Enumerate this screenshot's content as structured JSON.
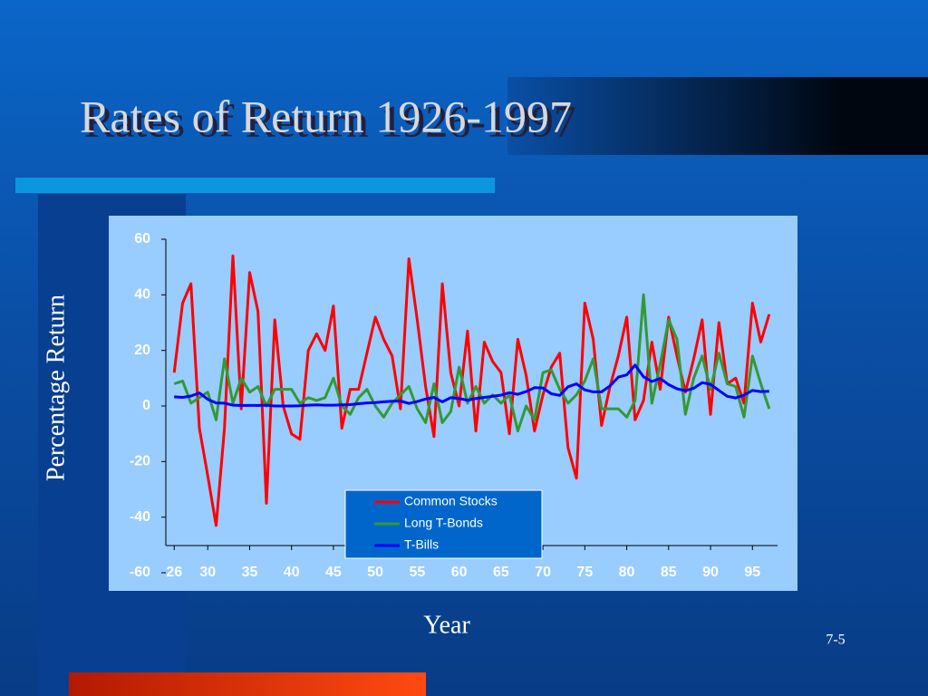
{
  "page_number": "7-5",
  "chart_data": {
    "type": "line",
    "title": "Rates of Return 1926-1997",
    "y_label": "Percentage Return",
    "x_label": "Year",
    "x": [
      26,
      27,
      28,
      29,
      30,
      31,
      32,
      33,
      34,
      35,
      36,
      37,
      38,
      39,
      40,
      41,
      42,
      43,
      44,
      45,
      46,
      47,
      48,
      49,
      50,
      51,
      52,
      53,
      54,
      55,
      56,
      57,
      58,
      59,
      60,
      61,
      62,
      63,
      64,
      65,
      66,
      67,
      68,
      69,
      70,
      71,
      72,
      73,
      74,
      75,
      76,
      77,
      78,
      79,
      80,
      81,
      82,
      83,
      84,
      85,
      86,
      87,
      88,
      89,
      90,
      91,
      92,
      93,
      94,
      95,
      96,
      97
    ],
    "xlim": [
      25,
      98
    ],
    "xticks": [
      26,
      30,
      35,
      40,
      45,
      50,
      55,
      60,
      65,
      70,
      75,
      80,
      85,
      90,
      95
    ],
    "ylim": [
      -60,
      60
    ],
    "yticks": [
      -60,
      -40,
      -20,
      0,
      20,
      40,
      60
    ],
    "series": [
      {
        "name": "Common Stocks",
        "color": "#ff0000",
        "values": [
          12,
          37,
          44,
          -8,
          -25,
          -43,
          -8,
          54,
          -1,
          48,
          34,
          -35,
          31,
          0,
          -10,
          -12,
          20,
          26,
          20,
          36,
          -8,
          6,
          6,
          19,
          32,
          24,
          18,
          -1,
          53,
          31,
          7,
          -11,
          44,
          12,
          0,
          27,
          -9,
          23,
          16,
          12,
          -10,
          24,
          11,
          -9,
          4,
          14,
          19,
          -15,
          -26,
          37,
          24,
          -7,
          7,
          18,
          32,
          -5,
          2,
          23,
          6,
          32,
          18,
          5,
          17,
          31,
          -3,
          30,
          8,
          10,
          1,
          37,
          23,
          33
        ]
      },
      {
        "name": "Long T-Bonds",
        "color": "#339933",
        "values": [
          8,
          9,
          1,
          3,
          5,
          -5,
          17,
          1,
          10,
          5,
          7,
          0,
          6,
          6,
          6,
          1,
          3,
          2,
          3,
          10,
          0,
          -3,
          3,
          6,
          0,
          -4,
          1,
          4,
          7,
          -1,
          -6,
          8,
          -6,
          -2,
          14,
          1,
          7,
          1,
          4,
          1,
          4,
          -9,
          0,
          -5,
          12,
          13,
          6,
          1,
          4,
          9,
          17,
          -1,
          -1,
          -1,
          -4,
          2,
          40,
          1,
          15,
          31,
          24,
          -3,
          10,
          18,
          6,
          19,
          8,
          7,
          -4,
          18,
          8,
          -1
        ]
      },
      {
        "name": "T-Bills",
        "color": "#0000ff",
        "values": [
          3.3,
          3.1,
          3.6,
          4.7,
          2.4,
          1.1,
          1.0,
          0.3,
          0.2,
          0.2,
          0.2,
          0.3,
          0,
          0,
          0,
          0.1,
          0.3,
          0.4,
          0.3,
          0.3,
          0.4,
          0.5,
          0.8,
          1.1,
          1.2,
          1.5,
          1.7,
          1.8,
          0.9,
          1.6,
          2.5,
          3.1,
          1.5,
          3.0,
          2.7,
          2.1,
          2.7,
          3.1,
          3.5,
          3.9,
          4.8,
          4.2,
          5.2,
          6.6,
          6.5,
          4.4,
          3.8,
          6.9,
          8.0,
          5.8,
          5.1,
          5.1,
          7.2,
          10.4,
          11.2,
          14.7,
          10.5,
          8.8,
          9.9,
          7.7,
          6.2,
          5.5,
          6.4,
          8.4,
          7.8,
          5.6,
          3.5,
          2.9,
          3.9,
          5.6,
          5.2,
          5.3
        ]
      }
    ]
  }
}
